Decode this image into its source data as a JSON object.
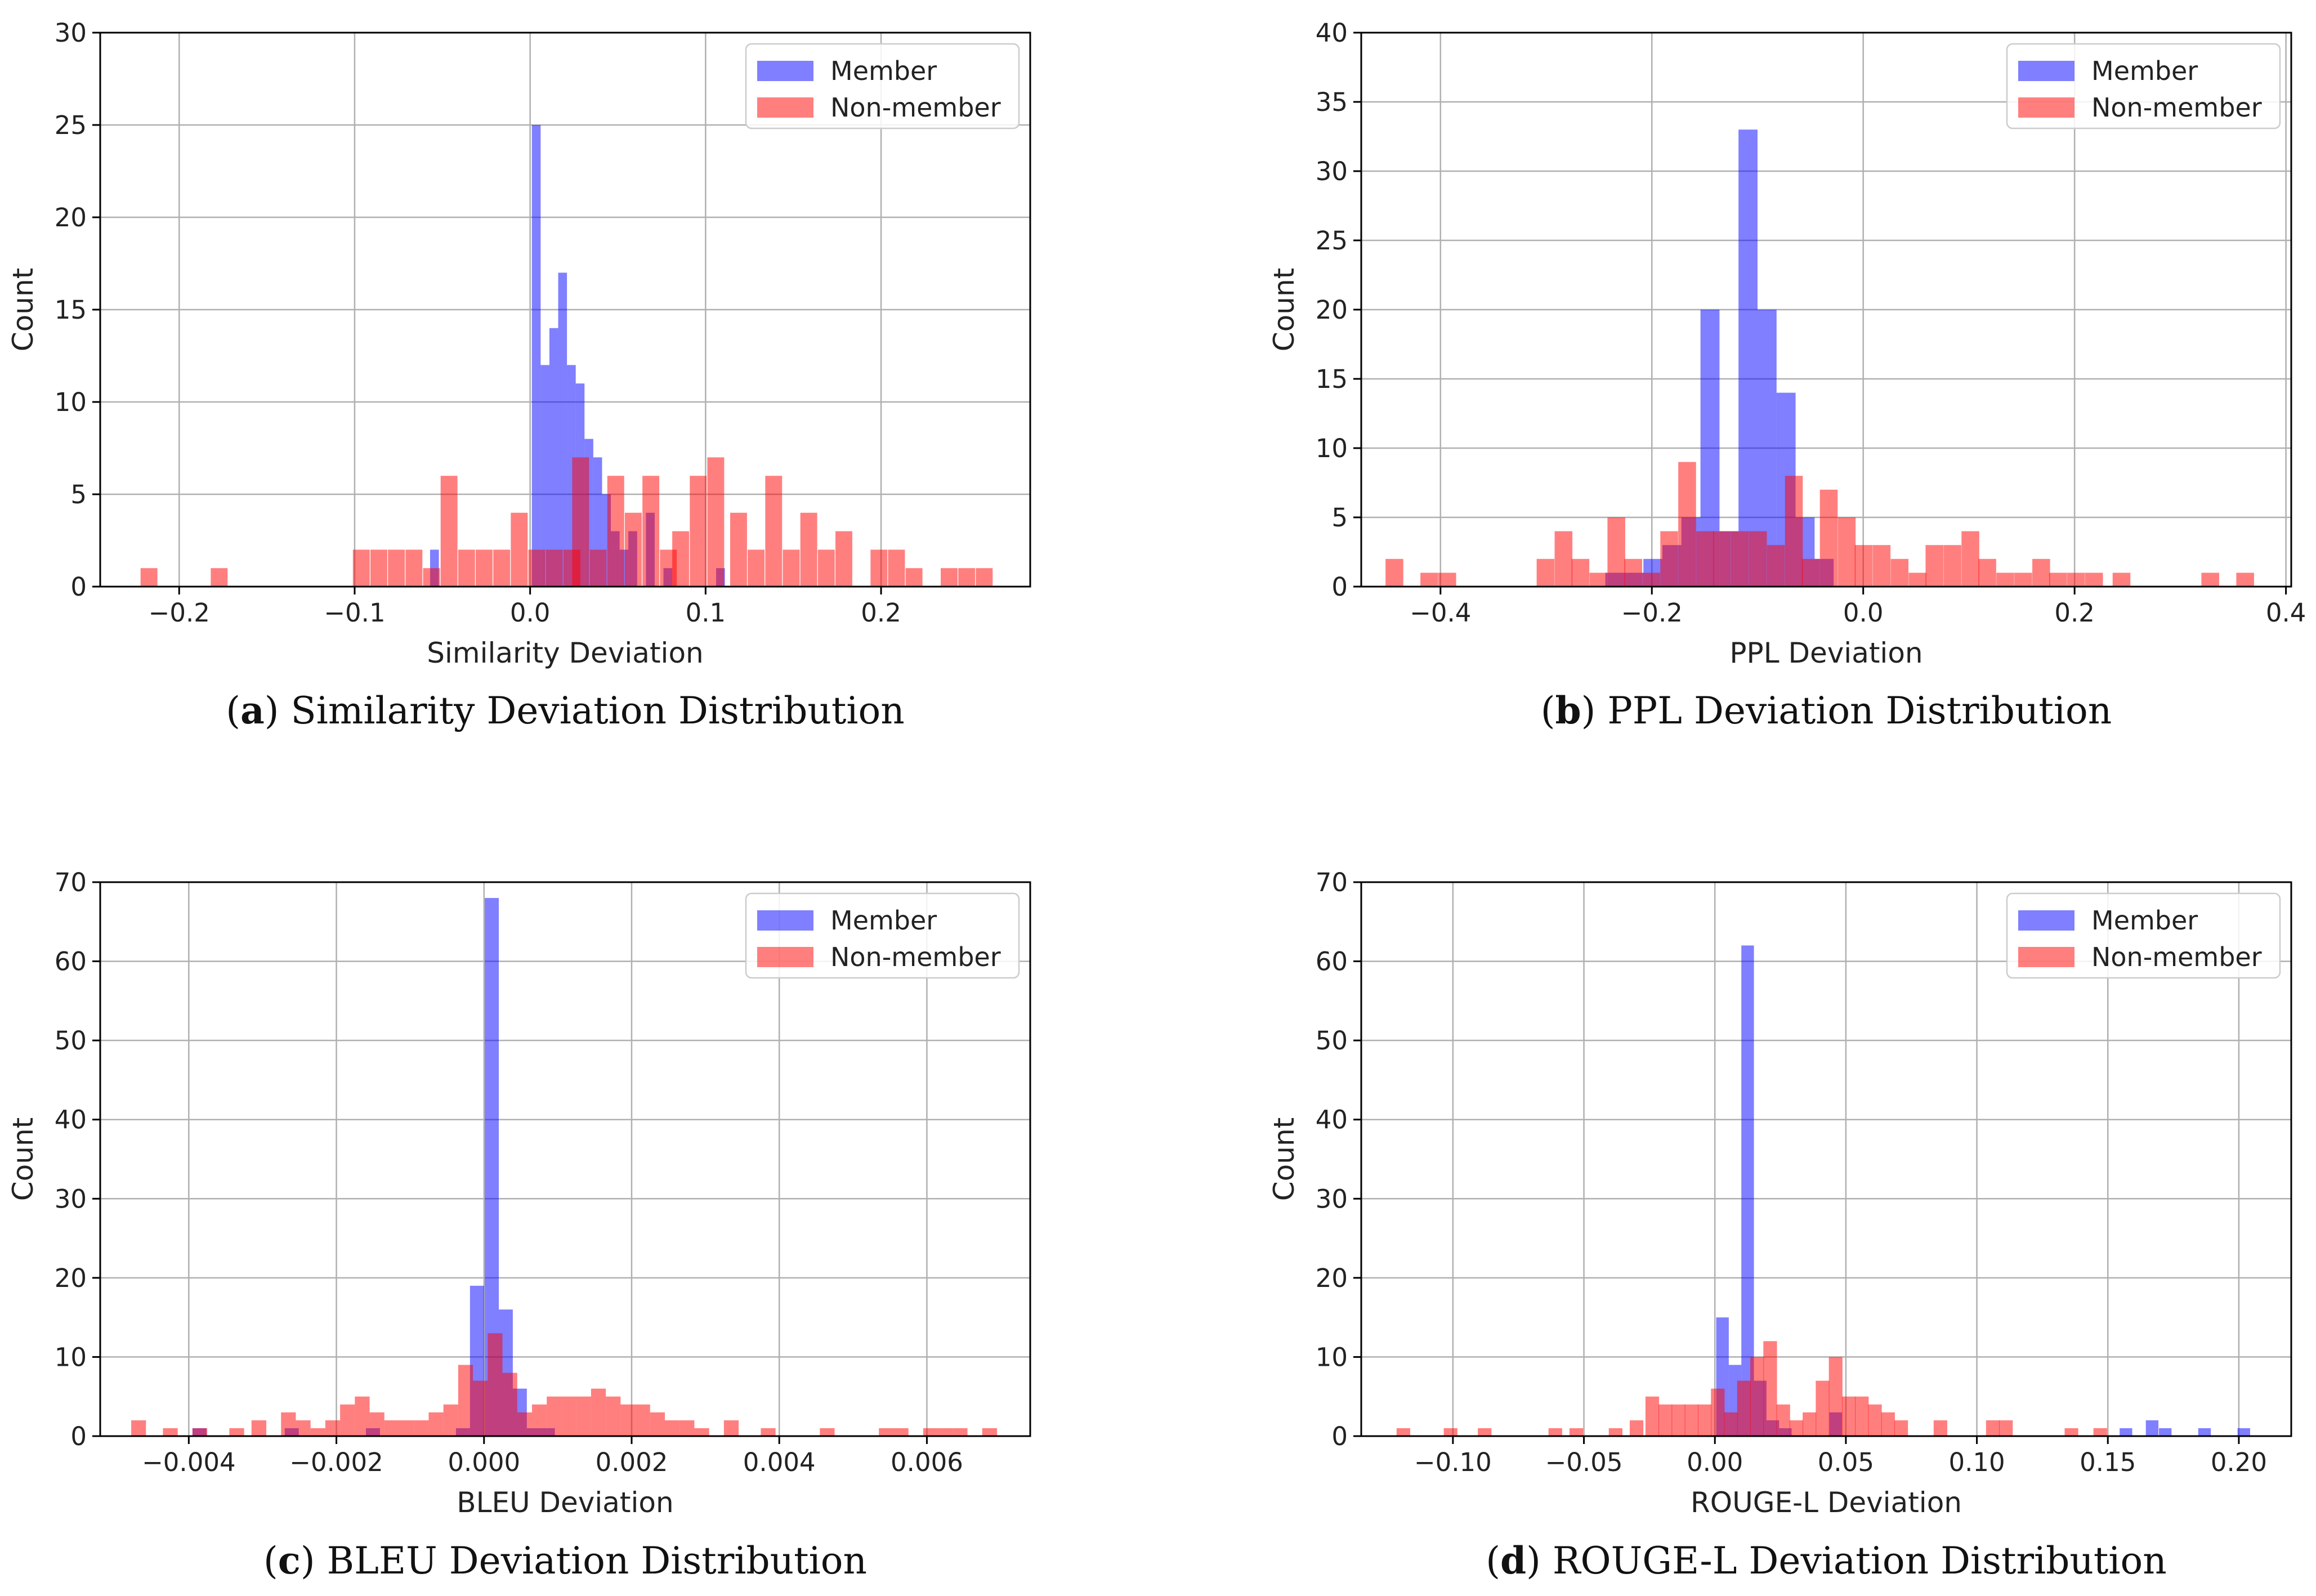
{
  "colors": {
    "member": "#0000ff",
    "non_member": "#ff0000",
    "bar_alpha": 0.5,
    "grid": "#b0b0b0"
  },
  "legend": {
    "member": "Member",
    "non_member": "Non-member"
  },
  "chart_data": [
    {
      "type": "bar",
      "id": "a",
      "caption_letter": "a",
      "caption_text": ") Similarity Deviation Distribution",
      "caption_open": "(",
      "xlabel": "Similarity Deviation",
      "ylabel": "Count",
      "xlim": [
        -0.245,
        0.285
      ],
      "ylim": [
        0,
        30
      ],
      "xticks": [
        -0.2,
        -0.1,
        0.0,
        0.1,
        0.2
      ],
      "xtick_labels": [
        "−0.2",
        "−0.1",
        "0.0",
        "0.1",
        "0.2"
      ],
      "yticks": [
        0,
        5,
        10,
        15,
        20,
        25,
        30
      ],
      "series": [
        {
          "name": "Member",
          "bin_width": 0.005,
          "bars": [
            [
              -0.057,
              2
            ],
            [
              0.001,
              25
            ],
            [
              0.006,
              12
            ],
            [
              0.011,
              14
            ],
            [
              0.016,
              17
            ],
            [
              0.021,
              12
            ],
            [
              0.026,
              11
            ],
            [
              0.031,
              8
            ],
            [
              0.036,
              7
            ],
            [
              0.041,
              5
            ],
            [
              0.046,
              3
            ],
            [
              0.051,
              2
            ],
            [
              0.056,
              3
            ],
            [
              0.066,
              4
            ],
            [
              0.076,
              1
            ],
            [
              0.106,
              1
            ]
          ]
        },
        {
          "name": "Non-member",
          "bin_width": 0.0096,
          "bars": [
            [
              -0.222,
              1
            ],
            [
              -0.182,
              1
            ],
            [
              -0.101,
              2
            ],
            [
              -0.091,
              2
            ],
            [
              -0.081,
              2
            ],
            [
              -0.071,
              2
            ],
            [
              -0.061,
              1
            ],
            [
              -0.051,
              6
            ],
            [
              -0.041,
              2
            ],
            [
              -0.031,
              2
            ],
            [
              -0.021,
              2
            ],
            [
              -0.011,
              4
            ],
            [
              -0.001,
              2
            ],
            [
              0.009,
              2
            ],
            [
              0.019,
              2
            ],
            [
              0.024,
              7
            ],
            [
              0.034,
              2
            ],
            [
              0.044,
              6
            ],
            [
              0.054,
              4
            ],
            [
              0.064,
              6
            ],
            [
              0.074,
              2
            ],
            [
              0.081,
              3
            ],
            [
              0.091,
              6
            ],
            [
              0.101,
              7
            ],
            [
              0.114,
              4
            ],
            [
              0.124,
              2
            ],
            [
              0.134,
              6
            ],
            [
              0.144,
              2
            ],
            [
              0.154,
              4
            ],
            [
              0.164,
              2
            ],
            [
              0.174,
              3
            ],
            [
              0.194,
              2
            ],
            [
              0.204,
              2
            ],
            [
              0.214,
              1
            ],
            [
              0.234,
              1
            ],
            [
              0.244,
              1
            ],
            [
              0.254,
              1
            ]
          ]
        }
      ]
    },
    {
      "type": "bar",
      "id": "b",
      "caption_letter": "b",
      "caption_text": ") PPL Deviation Distribution",
      "caption_open": "(",
      "xlabel": "PPL Deviation",
      "ylabel": "Count",
      "xlim": [
        -0.475,
        0.405
      ],
      "ylim": [
        0,
        40
      ],
      "xticks": [
        -0.4,
        -0.2,
        0.0,
        0.2,
        0.4
      ],
      "xtick_labels": [
        "−0.4",
        "−0.2",
        "0.0",
        "0.2",
        "0.4"
      ],
      "yticks": [
        0,
        5,
        10,
        15,
        20,
        25,
        30,
        35,
        40
      ],
      "series": [
        {
          "name": "Member",
          "bin_width": 0.018,
          "bars": [
            [
              -0.244,
              1
            ],
            [
              -0.226,
              1
            ],
            [
              -0.208,
              2
            ],
            [
              -0.19,
              3
            ],
            [
              -0.172,
              5
            ],
            [
              -0.154,
              20
            ],
            [
              -0.136,
              4
            ],
            [
              -0.118,
              33
            ],
            [
              -0.1,
              20
            ],
            [
              -0.082,
              14
            ],
            [
              -0.064,
              5
            ],
            [
              -0.046,
              2
            ]
          ]
        },
        {
          "name": "Non-member",
          "bin_width": 0.0168,
          "bars": [
            [
              -0.452,
              2
            ],
            [
              -0.419,
              1
            ],
            [
              -0.402,
              1
            ],
            [
              -0.309,
              2
            ],
            [
              -0.292,
              4
            ],
            [
              -0.276,
              2
            ],
            [
              -0.259,
              1
            ],
            [
              -0.242,
              5
            ],
            [
              -0.226,
              2
            ],
            [
              -0.209,
              1
            ],
            [
              -0.192,
              4
            ],
            [
              -0.175,
              9
            ],
            [
              -0.158,
              4
            ],
            [
              -0.142,
              4
            ],
            [
              -0.125,
              4
            ],
            [
              -0.108,
              4
            ],
            [
              -0.091,
              3
            ],
            [
              -0.074,
              8
            ],
            [
              -0.058,
              2
            ],
            [
              -0.041,
              7
            ],
            [
              -0.024,
              5
            ],
            [
              -0.008,
              3
            ],
            [
              0.009,
              3
            ],
            [
              0.026,
              2
            ],
            [
              0.043,
              1
            ],
            [
              0.059,
              3
            ],
            [
              0.076,
              3
            ],
            [
              0.093,
              4
            ],
            [
              0.109,
              2
            ],
            [
              0.126,
              1
            ],
            [
              0.143,
              1
            ],
            [
              0.16,
              2
            ],
            [
              0.176,
              1
            ],
            [
              0.193,
              1
            ],
            [
              0.21,
              1
            ],
            [
              0.236,
              1
            ],
            [
              0.32,
              1
            ],
            [
              0.353,
              1
            ]
          ]
        }
      ]
    },
    {
      "type": "bar",
      "id": "c",
      "caption_letter": "c",
      "caption_text": ") BLEU Deviation Distribution",
      "caption_open": "(",
      "xlabel": "BLEU Deviation",
      "ylabel": "Count",
      "xlim": [
        -0.0052,
        0.0074
      ],
      "ylim": [
        0,
        70
      ],
      "xticks": [
        -0.004,
        -0.002,
        0.0,
        0.002,
        0.004,
        0.006
      ],
      "xtick_labels": [
        "−0.004",
        "−0.002",
        "0.000",
        "0.002",
        "0.004",
        "0.006"
      ],
      "yticks": [
        0,
        10,
        20,
        30,
        40,
        50,
        60,
        70
      ],
      "series": [
        {
          "name": "Member",
          "bin_width": 0.00019,
          "bars": [
            [
              -0.00395,
              1
            ],
            [
              -0.0027,
              1
            ],
            [
              -0.0016,
              1
            ],
            [
              -0.00038,
              1
            ],
            [
              -0.00019,
              19
            ],
            [
              1e-05,
              68
            ],
            [
              0.0002,
              16
            ],
            [
              0.00039,
              6
            ],
            [
              0.00058,
              1
            ],
            [
              0.00077,
              1
            ]
          ]
        },
        {
          "name": "Non-member",
          "bin_width": 0.0002,
          "bars": [
            [
              -0.00478,
              2
            ],
            [
              -0.00435,
              1
            ],
            [
              -0.00395,
              1
            ],
            [
              -0.00345,
              1
            ],
            [
              -0.00315,
              2
            ],
            [
              -0.00275,
              3
            ],
            [
              -0.00255,
              2
            ],
            [
              -0.00235,
              1
            ],
            [
              -0.00215,
              2
            ],
            [
              -0.00195,
              4
            ],
            [
              -0.00175,
              5
            ],
            [
              -0.00155,
              3
            ],
            [
              -0.00135,
              2
            ],
            [
              -0.00115,
              2
            ],
            [
              -0.00095,
              2
            ],
            [
              -0.00075,
              3
            ],
            [
              -0.00055,
              4
            ],
            [
              -0.00035,
              9
            ],
            [
              -0.00015,
              7
            ],
            [
              5e-05,
              13
            ],
            [
              0.00025,
              8
            ],
            [
              0.00045,
              3
            ],
            [
              0.00065,
              4
            ],
            [
              0.00085,
              5
            ],
            [
              0.00105,
              5
            ],
            [
              0.00125,
              5
            ],
            [
              0.00145,
              6
            ],
            [
              0.00165,
              5
            ],
            [
              0.00185,
              4
            ],
            [
              0.00205,
              4
            ],
            [
              0.00225,
              3
            ],
            [
              0.00245,
              2
            ],
            [
              0.00265,
              2
            ],
            [
              0.00285,
              1
            ],
            [
              0.00325,
              2
            ],
            [
              0.00375,
              1
            ],
            [
              0.00455,
              1
            ],
            [
              0.00535,
              1
            ],
            [
              0.00555,
              1
            ],
            [
              0.00595,
              1
            ],
            [
              0.00615,
              1
            ],
            [
              0.00635,
              1
            ],
            [
              0.00675,
              1
            ]
          ]
        }
      ]
    },
    {
      "type": "bar",
      "id": "d",
      "caption_letter": "d",
      "caption_text": ") ROUGE-L Deviation Distribution",
      "caption_open": "(",
      "xlabel": "ROUGE-L Deviation",
      "ylabel": "Count",
      "xlim": [
        -0.135,
        0.22
      ],
      "ylim": [
        0,
        70
      ],
      "xticks": [
        -0.1,
        -0.05,
        0.0,
        0.05,
        0.1,
        0.15,
        0.2
      ],
      "xtick_labels": [
        "−0.10",
        "−0.05",
        "0.00",
        "0.05",
        "0.10",
        "0.15",
        "0.20"
      ],
      "yticks": [
        0,
        10,
        20,
        30,
        40,
        50,
        60,
        70
      ],
      "series": [
        {
          "name": "Member",
          "bin_width": 0.0048,
          "bars": [
            [
              0.0005,
              15
            ],
            [
              0.0053,
              9
            ],
            [
              0.0101,
              62
            ],
            [
              0.0149,
              7
            ],
            [
              0.0197,
              2
            ],
            [
              0.0245,
              1
            ],
            [
              0.0437,
              3
            ],
            [
              0.1545,
              1
            ],
            [
              0.1645,
              2
            ],
            [
              0.1695,
              1
            ],
            [
              0.1845,
              1
            ],
            [
              0.1995,
              1
            ]
          ]
        },
        {
          "name": "Non-member",
          "bin_width": 0.0052,
          "bars": [
            [
              -0.1215,
              1
            ],
            [
              -0.1035,
              1
            ],
            [
              -0.0905,
              1
            ],
            [
              -0.0635,
              1
            ],
            [
              -0.0555,
              1
            ],
            [
              -0.0405,
              1
            ],
            [
              -0.0325,
              2
            ],
            [
              -0.0265,
              5
            ],
            [
              -0.0215,
              4
            ],
            [
              -0.0165,
              4
            ],
            [
              -0.0115,
              4
            ],
            [
              -0.0065,
              4
            ],
            [
              -0.0015,
              6
            ],
            [
              0.0035,
              3
            ],
            [
              0.0085,
              7
            ],
            [
              0.0135,
              10
            ],
            [
              0.0185,
              12
            ],
            [
              0.0235,
              4
            ],
            [
              0.0285,
              2
            ],
            [
              0.0335,
              3
            ],
            [
              0.0385,
              7
            ],
            [
              0.0435,
              10
            ],
            [
              0.0485,
              5
            ],
            [
              0.0535,
              5
            ],
            [
              0.0585,
              4
            ],
            [
              0.0635,
              3
            ],
            [
              0.0685,
              2
            ],
            [
              0.0835,
              2
            ],
            [
              0.1035,
              2
            ],
            [
              0.1085,
              2
            ],
            [
              0.1335,
              1
            ],
            [
              0.1445,
              1
            ]
          ]
        }
      ]
    }
  ]
}
